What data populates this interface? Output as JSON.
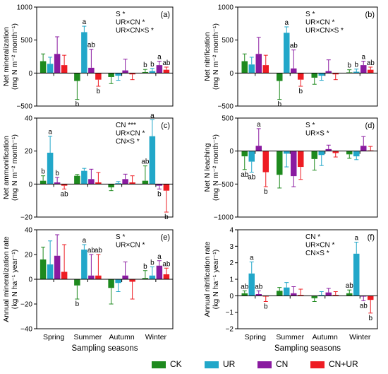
{
  "colors": {
    "CK": "#1e8a1e",
    "UR": "#22a7c9",
    "CN": "#8a1aa0",
    "CN+UR": "#ee1c23"
  },
  "legend": [
    {
      "key": "CK",
      "label": "CK"
    },
    {
      "key": "UR",
      "label": "UR"
    },
    {
      "key": "CN",
      "label": "CN"
    },
    {
      "key": "CN+UR",
      "label": "CN+UR"
    }
  ],
  "chart_data": [
    {
      "type": "bar",
      "panel": "(a)",
      "ylabel_lines": [
        "Net mineralization",
        "(mg N m⁻² month⁻¹)"
      ],
      "ylim": [
        -500,
        1000
      ],
      "yticks": [
        -500,
        0,
        500,
        1000
      ],
      "xlabel": "",
      "categories": [
        "Spring",
        "Summer",
        "Autumn",
        "Winter"
      ],
      "show_xticklabels": false,
      "series": [
        {
          "key": "CK",
          "values": [
            180,
            -120,
            -60,
            15
          ],
          "errors": [
            110,
            280,
            100,
            40
          ]
        },
        {
          "key": "UR",
          "values": [
            140,
            620,
            -40,
            30
          ],
          "errors": [
            100,
            90,
            70,
            40
          ]
        },
        {
          "key": "CN",
          "values": [
            290,
            80,
            40,
            120
          ],
          "errors": [
            260,
            280,
            170,
            60
          ]
        },
        {
          "key": "CN+UR",
          "values": [
            120,
            -100,
            -20,
            50
          ],
          "errors": [
            150,
            100,
            80,
            40
          ]
        }
      ],
      "letters": [
        {
          "cat": 1,
          "s": 0,
          "text": "b",
          "pos": "below"
        },
        {
          "cat": 1,
          "s": 1,
          "text": "a",
          "pos": "above"
        },
        {
          "cat": 1,
          "s": 2,
          "text": "ab",
          "pos": "above"
        },
        {
          "cat": 1,
          "s": 3,
          "text": "b",
          "pos": "below"
        },
        {
          "cat": 3,
          "s": 0,
          "text": "b",
          "pos": "above"
        },
        {
          "cat": 3,
          "s": 1,
          "text": "b",
          "pos": "above"
        },
        {
          "cat": 3,
          "s": 2,
          "text": "a",
          "pos": "above"
        },
        {
          "cat": 3,
          "s": 3,
          "text": "ab",
          "pos": "above"
        }
      ],
      "stats": [
        "S *",
        "UR×CN *",
        "UR×CN×S *"
      ]
    },
    {
      "type": "bar",
      "panel": "(b)",
      "ylabel_lines": [
        "Net nitrification",
        "(mg N m⁻² month⁻¹)"
      ],
      "ylim": [
        -500,
        1000
      ],
      "yticks": [
        -500,
        0,
        500,
        1000
      ],
      "xlabel": "",
      "categories": [
        "Spring",
        "Summer",
        "Autumn",
        "Winter"
      ],
      "show_xticklabels": false,
      "series": [
        {
          "key": "CK",
          "values": [
            180,
            -120,
            -70,
            10
          ],
          "errors": [
            110,
            280,
            100,
            40
          ]
        },
        {
          "key": "UR",
          "values": [
            130,
            610,
            -40,
            20
          ],
          "errors": [
            110,
            90,
            70,
            40
          ]
        },
        {
          "key": "CN",
          "values": [
            290,
            70,
            30,
            120
          ],
          "errors": [
            250,
            280,
            170,
            60
          ]
        },
        {
          "key": "CN+UR",
          "values": [
            120,
            -100,
            -20,
            50
          ],
          "errors": [
            150,
            100,
            80,
            40
          ]
        }
      ],
      "letters": [
        {
          "cat": 1,
          "s": 0,
          "text": "b",
          "pos": "below"
        },
        {
          "cat": 1,
          "s": 1,
          "text": "a",
          "pos": "above"
        },
        {
          "cat": 1,
          "s": 2,
          "text": "ab",
          "pos": "above"
        },
        {
          "cat": 1,
          "s": 3,
          "text": "b",
          "pos": "below"
        },
        {
          "cat": 3,
          "s": 0,
          "text": "b",
          "pos": "above"
        },
        {
          "cat": 3,
          "s": 1,
          "text": "b",
          "pos": "above"
        },
        {
          "cat": 3,
          "s": 2,
          "text": "a",
          "pos": "above"
        },
        {
          "cat": 3,
          "s": 3,
          "text": "ab",
          "pos": "above"
        }
      ],
      "stats": [
        "S *",
        "UR×CN *",
        "UR×CN×S *"
      ]
    },
    {
      "type": "bar",
      "panel": "(c)",
      "ylabel_lines": [
        "Net ammonification",
        "(mg N m⁻² month⁻¹)"
      ],
      "ylim": [
        -20,
        40
      ],
      "yticks": [
        -20,
        0,
        20,
        40
      ],
      "xlabel": "",
      "categories": [
        "Spring",
        "Summer",
        "Autumn",
        "Winter"
      ],
      "show_xticklabels": false,
      "series": [
        {
          "key": "CK",
          "values": [
            2,
            5,
            -2,
            2
          ],
          "errors": [
            3,
            0.8,
            2,
            9
          ]
        },
        {
          "key": "UR",
          "values": [
            19,
            8,
            0.5,
            29
          ],
          "errors": [
            10,
            1.5,
            1,
            10
          ]
        },
        {
          "key": "CN",
          "values": [
            1,
            3,
            3,
            -1
          ],
          "errors": [
            3,
            6,
            3,
            2
          ]
        },
        {
          "key": "CN+UR",
          "values": [
            -1,
            1,
            1,
            -4
          ],
          "errors": [
            2,
            6,
            4,
            13
          ]
        }
      ],
      "letters": [
        {
          "cat": 0,
          "s": 0,
          "text": "b",
          "pos": "above"
        },
        {
          "cat": 0,
          "s": 1,
          "text": "a",
          "pos": "above"
        },
        {
          "cat": 0,
          "s": 2,
          "text": "b",
          "pos": "above"
        },
        {
          "cat": 0,
          "s": 3,
          "text": "ab",
          "pos": "below"
        },
        {
          "cat": 3,
          "s": 0,
          "text": "ab",
          "pos": "above"
        },
        {
          "cat": 3,
          "s": 1,
          "text": "a",
          "pos": "above"
        },
        {
          "cat": 3,
          "s": 2,
          "text": "b",
          "pos": "below"
        },
        {
          "cat": 3,
          "s": 3,
          "text": "b",
          "pos": "below"
        }
      ],
      "stats": [
        "CN ***",
        "UR×CN *",
        "CN×S *"
      ]
    },
    {
      "type": "bar",
      "panel": "(d)",
      "ylabel_lines": [
        "Net N leaching",
        "(mg N m⁻² month⁻¹)"
      ],
      "ylim": [
        -1000,
        500
      ],
      "yticks": [
        -1000,
        -500,
        0,
        500
      ],
      "xlabel": "",
      "categories": [
        "Spring",
        "Summer",
        "Autumn",
        "Winter"
      ],
      "show_xticklabels": false,
      "series": [
        {
          "key": "CK",
          "values": [
            -80,
            -360,
            -120,
            -50
          ],
          "errors": [
            200,
            200,
            170,
            60
          ]
        },
        {
          "key": "UR",
          "values": [
            -160,
            -40,
            -60,
            -80
          ],
          "errors": [
            160,
            200,
            160,
            50
          ]
        },
        {
          "key": "CN",
          "values": [
            80,
            -380,
            30,
            80
          ],
          "errors": [
            260,
            160,
            60,
            140
          ]
        },
        {
          "key": "CN+UR",
          "values": [
            -320,
            -240,
            -30,
            10
          ],
          "errors": [
            220,
            190,
            60,
            60
          ]
        }
      ],
      "letters": [
        {
          "cat": 0,
          "s": 0,
          "text": "ab",
          "pos": "below"
        },
        {
          "cat": 0,
          "s": 1,
          "text": "ab",
          "pos": "below"
        },
        {
          "cat": 0,
          "s": 2,
          "text": "a",
          "pos": "above"
        },
        {
          "cat": 0,
          "s": 3,
          "text": "b",
          "pos": "below"
        }
      ],
      "stats": [
        "S *",
        "UR×S *"
      ]
    },
    {
      "type": "bar",
      "panel": "(e)",
      "ylabel_lines": [
        "Annual mineralization rate",
        "(kg N ha⁻¹ year⁻¹)"
      ],
      "ylim": [
        -40,
        40
      ],
      "yticks": [
        -40,
        -20,
        0,
        20,
        40
      ],
      "xlabel": "Sampling seasons",
      "categories": [
        "Spring",
        "Summer",
        "Autumn",
        "Winter"
      ],
      "show_xticklabels": true,
      "series": [
        {
          "key": "CK",
          "values": [
            16,
            -5,
            -7,
            1
          ],
          "errors": [
            10,
            11,
            13,
            6
          ]
        },
        {
          "key": "UR",
          "values": [
            12,
            24,
            -3,
            3
          ],
          "errors": [
            19,
            4,
            7,
            7
          ]
        },
        {
          "key": "CN",
          "values": [
            19,
            3,
            3,
            11
          ],
          "errors": [
            17,
            17,
            11,
            4
          ]
        },
        {
          "key": "CN+UR",
          "values": [
            6,
            3,
            -2,
            4
          ],
          "errors": [
            22,
            17,
            14,
            5
          ]
        }
      ],
      "letters": [
        {
          "cat": 1,
          "s": 0,
          "text": "b",
          "pos": "below"
        },
        {
          "cat": 1,
          "s": 1,
          "text": "a",
          "pos": "above"
        },
        {
          "cat": 1,
          "s": 2,
          "text": "ab",
          "pos": "above"
        },
        {
          "cat": 1,
          "s": 3,
          "text": "ab",
          "pos": "above"
        },
        {
          "cat": 3,
          "s": 0,
          "text": "b",
          "pos": "above"
        },
        {
          "cat": 3,
          "s": 1,
          "text": "b",
          "pos": "above"
        },
        {
          "cat": 3,
          "s": 2,
          "text": "a",
          "pos": "above"
        },
        {
          "cat": 3,
          "s": 3,
          "text": "ab",
          "pos": "above"
        }
      ],
      "stats": [
        "S *",
        "UR×CN *"
      ]
    },
    {
      "type": "bar",
      "panel": "(f)",
      "ylabel_lines": [
        "Annual nitrification rate",
        "(kg N ha⁻¹ year⁻¹)"
      ],
      "ylim": [
        -2,
        4
      ],
      "yticks": [
        -2,
        -1,
        0,
        1,
        2,
        3,
        4
      ],
      "xlabel": "Sampling seasons",
      "categories": [
        "Spring",
        "Summer",
        "Autumn",
        "Winter"
      ],
      "show_xticklabels": true,
      "series": [
        {
          "key": "CK",
          "values": [
            0.15,
            0.3,
            -0.15,
            0.15
          ],
          "errors": [
            0.15,
            0.2,
            0.2,
            0.2
          ]
        },
        {
          "key": "UR",
          "values": [
            1.35,
            0.5,
            0.05,
            2.55
          ],
          "errors": [
            0.7,
            0.3,
            0.2,
            0.7
          ]
        },
        {
          "key": "CN",
          "values": [
            0.1,
            0.15,
            0.2,
            -0.05
          ],
          "errors": [
            0.2,
            0.4,
            0.25,
            0.25
          ]
        },
        {
          "key": "CN+UR",
          "values": [
            -0.05,
            0.05,
            0.05,
            -0.25
          ],
          "errors": [
            0.3,
            0.35,
            0.2,
            0.8
          ]
        }
      ],
      "letters": [
        {
          "cat": 0,
          "s": 0,
          "text": "ab",
          "pos": "above"
        },
        {
          "cat": 0,
          "s": 1,
          "text": "a",
          "pos": "above"
        },
        {
          "cat": 0,
          "s": 2,
          "text": "ab",
          "pos": "above"
        },
        {
          "cat": 0,
          "s": 3,
          "text": "b",
          "pos": "below"
        },
        {
          "cat": 3,
          "s": 0,
          "text": "ab",
          "pos": "above"
        },
        {
          "cat": 3,
          "s": 1,
          "text": "a",
          "pos": "above"
        },
        {
          "cat": 3,
          "s": 2,
          "text": "ab",
          "pos": "below"
        },
        {
          "cat": 3,
          "s": 3,
          "text": "b",
          "pos": "below"
        }
      ],
      "stats": [
        "CN *",
        "UR×CN *",
        "CN×S *"
      ]
    }
  ]
}
